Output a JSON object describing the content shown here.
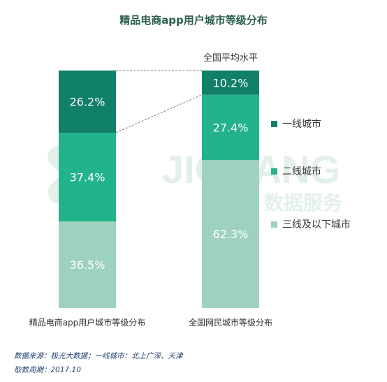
{
  "chart_data": {
    "type": "stacked-bar",
    "title": "精品电商app用户城市等级分布",
    "categories": [
      "精品电商app用户城市等级分布",
      "全国网民城市等级分布"
    ],
    "top_note": "全国平均水平",
    "series": [
      {
        "name": "三线及以下城市",
        "color": "#9ed2bf",
        "values": [
          36.5,
          62.3
        ]
      },
      {
        "name": "二线城市",
        "color": "#22b28c",
        "values": [
          37.4,
          27.4
        ]
      },
      {
        "name": "一线城市",
        "color": "#108069",
        "values": [
          26.2,
          10.2
        ]
      }
    ],
    "value_suffix": "%",
    "watermark": {
      "latin": "JIGUANG",
      "zh": "极光 数据服务"
    }
  },
  "footer": {
    "source": "数据来源：极光大数据；一线城市：北上广深、天津",
    "period": "取数周期：2017.10"
  }
}
